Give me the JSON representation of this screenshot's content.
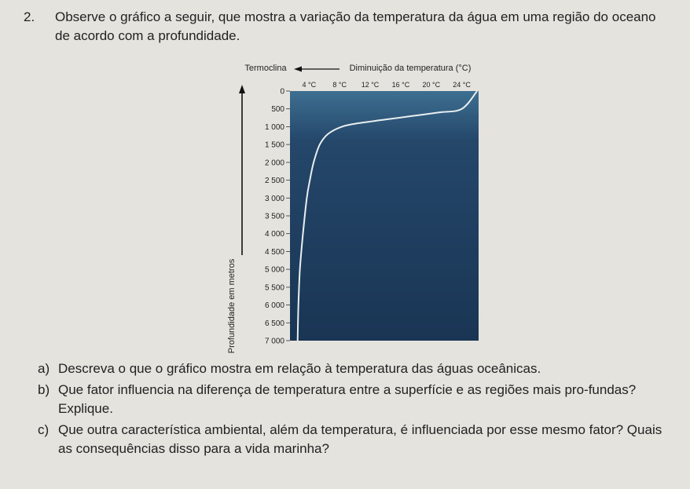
{
  "question": {
    "number": "2.",
    "text": "Observe o gráfico a seguir, que mostra a variação da temperatura da água em uma região do oceano de acordo com a profundidade."
  },
  "chart_data": {
    "type": "line",
    "title_left": "Termoclina",
    "title_right": "Diminuição da temperatura (°C)",
    "x_tick_labels": [
      "4 °C",
      "8 °C",
      "12 °C",
      "16 °C",
      "20 °C",
      "24 °C"
    ],
    "x_ticks": [
      4,
      8,
      12,
      16,
      20,
      24
    ],
    "y_tick_labels": [
      "0",
      "500",
      "1 000",
      "1 500",
      "2 000",
      "2 500",
      "3 000",
      "3 500",
      "4 000",
      "4 500",
      "5 000",
      "5 500",
      "6 000",
      "6 500",
      "7 000"
    ],
    "y_ticks": [
      0,
      500,
      1000,
      1500,
      2000,
      2500,
      3000,
      3500,
      4000,
      4500,
      5000,
      5500,
      6000,
      6500,
      7000
    ],
    "ylabel": "Profundidade em metros",
    "xlim": [
      1.5,
      26.2
    ],
    "ylim": [
      7000,
      0
    ],
    "series": [
      {
        "x": [
          26.0,
          24.0,
          21.0,
          17.5,
          14.0,
          10.5,
          8.3,
          6.5,
          5.4,
          4.6,
          4.1,
          3.7,
          3.2,
          2.8,
          2.6,
          2.5
        ],
        "y": [
          0,
          500,
          600,
          700,
          800,
          900,
          1000,
          1200,
          1500,
          2000,
          2500,
          3000,
          4000,
          5000,
          6000,
          7000
        ]
      }
    ],
    "colors": {
      "panel_top": "#3e6f91",
      "panel_bottom": "#1a3554",
      "curve": "#e9eef0"
    }
  },
  "items": [
    {
      "label": "a)",
      "text": "Descreva o que o gráfico mostra em relação à temperatura das águas oceânicas."
    },
    {
      "label": "b)",
      "text": "Que fator influencia na diferença de temperatura entre a superfície e as regiões mais pro-fundas? Explique."
    },
    {
      "label": "c)",
      "text": "Que outra característica ambiental, além da temperatura, é influenciada por esse mesmo fator? Quais as consequências disso para a vida marinha?"
    }
  ]
}
